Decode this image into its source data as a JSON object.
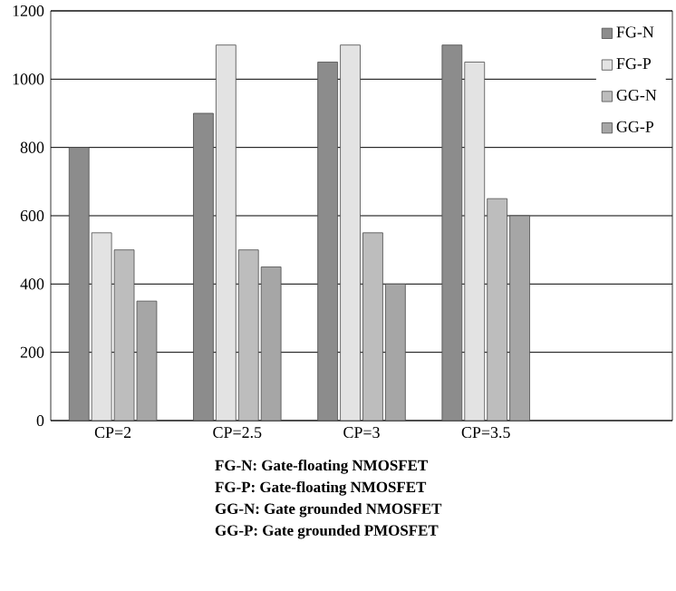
{
  "chart_data": {
    "type": "bar",
    "categories": [
      "CP=2",
      "CP=2.5",
      "CP=3",
      "CP=3.5",
      null
    ],
    "series": [
      {
        "name": "FG-N",
        "color": "#8c8c8c",
        "values": [
          800,
          900,
          1050,
          1100,
          null
        ]
      },
      {
        "name": "FG-P",
        "color": "#e3e3e3",
        "values": [
          550,
          1100,
          1100,
          1050,
          null
        ]
      },
      {
        "name": "GG-N",
        "color": "#bdbdbd",
        "values": [
          500,
          500,
          550,
          650,
          null
        ]
      },
      {
        "name": "GG-P",
        "color": "#a6a6a6",
        "values": [
          350,
          450,
          400,
          600,
          null
        ]
      }
    ],
    "ylim": [
      0,
      1200
    ],
    "yticks": [
      0,
      200,
      400,
      600,
      800,
      1000,
      1200
    ],
    "grid": "y",
    "legend": "top right",
    "annotations": [
      "FG-N: Gate-floating NMOSFET",
      "FG-P: Gate-floating NMOSFET",
      "GG-N: Gate grounded NMOSFET",
      "GG-P: Gate grounded PMOSFET"
    ]
  }
}
